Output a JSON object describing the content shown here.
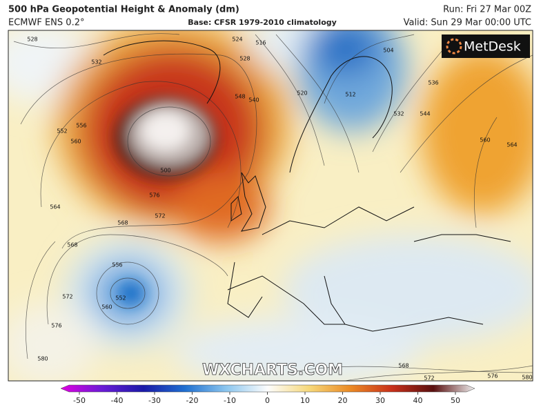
{
  "header": {
    "title": "500 hPa Geopotential Height & Anomaly (dm)",
    "model": "ECMWF ENS 0.2°",
    "base": "Base: CFSR 1979-2010 climatology",
    "run": "Run: Fri 27 Mar 00Z",
    "valid": "Valid: Sun 29 Mar 00:00 UTC"
  },
  "logo": "MetDesk",
  "watermark": "WXCHARTS.COM",
  "colorbar": {
    "ticks": [
      -50,
      -40,
      -30,
      -20,
      -10,
      0,
      10,
      20,
      30,
      40,
      50
    ]
  },
  "contour_labels": [
    528,
    532,
    552,
    556,
    560,
    564,
    568,
    572,
    576,
    580,
    568,
    572,
    576,
    500,
    548,
    540,
    528,
    520,
    516,
    524,
    512,
    504,
    532,
    536,
    544,
    560,
    564,
    556,
    552,
    560,
    568,
    572,
    576,
    580
  ]
}
